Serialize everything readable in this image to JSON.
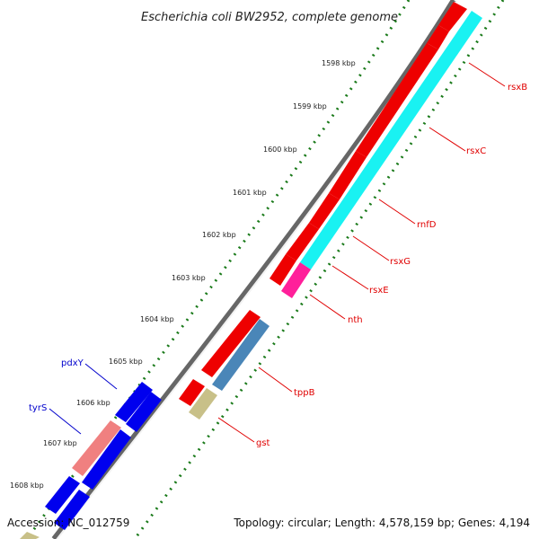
{
  "title": "Escherichia coli BW2952, complete genome",
  "accession": "Accession: NC_012759",
  "topology": "Topology: circular; Length: 4,578,159 bp; Genes: 4,194",
  "ticks": [
    "1598 kbp",
    "1599 kbp",
    "1600 kbp",
    "1601 kbp",
    "1602 kbp",
    "1603 kbp",
    "1604 kbp",
    "1605 kbp",
    "1606 kbp",
    "1607 kbp",
    "1608 kbp"
  ],
  "genes": [
    {
      "name": "rsxB",
      "color": "#e00000"
    },
    {
      "name": "rsxC",
      "color": "#e00000"
    },
    {
      "name": "rnfD",
      "color": "#e00000"
    },
    {
      "name": "rsxG",
      "color": "#e00000"
    },
    {
      "name": "rsxE",
      "color": "#e00000"
    },
    {
      "name": "nth",
      "color": "#e00000"
    },
    {
      "name": "tppB",
      "color": "#e00000"
    },
    {
      "name": "gst",
      "color": "#e00000"
    },
    {
      "name": "pdxY",
      "color": "#0000cc"
    },
    {
      "name": "tyrS",
      "color": "#0000cc"
    }
  ]
}
